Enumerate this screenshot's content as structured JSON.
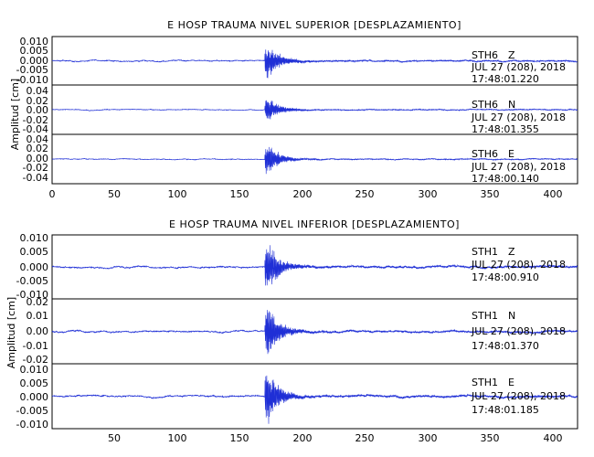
{
  "chart_data": [
    {
      "type": "line",
      "title": "E HOSP TRAUMA NIVEL SUPERIOR [DESPLAZAMIENTO]",
      "ylabel": "Amplitud [cm]",
      "xlim": [
        0,
        420
      ],
      "x_ticks": [
        0,
        50,
        100,
        150,
        200,
        250,
        300,
        350,
        400
      ],
      "line_color": "#1f2fd6",
      "grid": false,
      "traces": [
        {
          "station": "STH6",
          "component": "Z",
          "date": "JUL 27 (208), 2018",
          "time": "17:48:01.220",
          "ylim": [
            -0.01,
            0.01
          ],
          "y_ticks": [
            "-0.010",
            "-0.005",
            "0.000",
            "0.005",
            "0.010"
          ],
          "event_onset": 170,
          "peak_amplitude": 0.008,
          "noise_level": 0.00025
        },
        {
          "station": "STH6",
          "component": "N",
          "date": "JUL 27 (208), 2018",
          "time": "17:48:01.355",
          "ylim": [
            -0.04,
            0.04
          ],
          "y_ticks": [
            "-0.04",
            "-0.02",
            "0.00",
            "0.02",
            "0.04"
          ],
          "event_onset": 170,
          "peak_amplitude": 0.022,
          "noise_level": 0.0007
        },
        {
          "station": "STH6",
          "component": "E",
          "date": "JUL 27 (208), 2018",
          "time": "17:48:00.140",
          "ylim": [
            -0.04,
            0.04
          ],
          "y_ticks": [
            "-0.04",
            "-0.02",
            "0.00",
            "0.02",
            "0.04"
          ],
          "event_onset": 170,
          "peak_amplitude": 0.026,
          "noise_level": 0.0007
        }
      ]
    },
    {
      "type": "line",
      "title": "E HOSP TRAUMA NIVEL INFERIOR [DESPLAZAMIENTO]",
      "ylabel": "Amplitud [cm]",
      "xlim": [
        0,
        420
      ],
      "x_ticks": [
        50,
        100,
        150,
        200,
        250,
        300,
        350,
        400
      ],
      "line_color": "#1f2fd6",
      "grid": false,
      "traces": [
        {
          "station": "STH1",
          "component": "Z",
          "date": "JUL 27 (208), 2018",
          "time": "17:48:00.910",
          "ylim": [
            -0.011,
            0.011
          ],
          "y_ticks": [
            "-0.010",
            "-0.005",
            "0.000",
            "0.005",
            "0.010"
          ],
          "event_onset": 170,
          "peak_amplitude": 0.0095,
          "noise_level": 0.0003
        },
        {
          "station": "STH1",
          "component": "N",
          "date": "JUL 27 (208), 2018",
          "time": "17:48:01.370",
          "ylim": [
            -0.02,
            0.02
          ],
          "y_ticks": [
            "-0.02",
            "-0.01",
            "0.00",
            "0.01",
            "0.02"
          ],
          "event_onset": 170,
          "peak_amplitude": 0.017,
          "noise_level": 0.0005
        },
        {
          "station": "STH1",
          "component": "E",
          "date": "JUL 27 (208), 2018",
          "time": "17:48:01.185",
          "ylim": [
            -0.011,
            0.011
          ],
          "y_ticks": [
            "-0.010",
            "-0.005",
            "0.000",
            "0.005",
            "0.010"
          ],
          "event_onset": 170,
          "peak_amplitude": 0.0095,
          "noise_level": 0.0003
        }
      ]
    }
  ]
}
